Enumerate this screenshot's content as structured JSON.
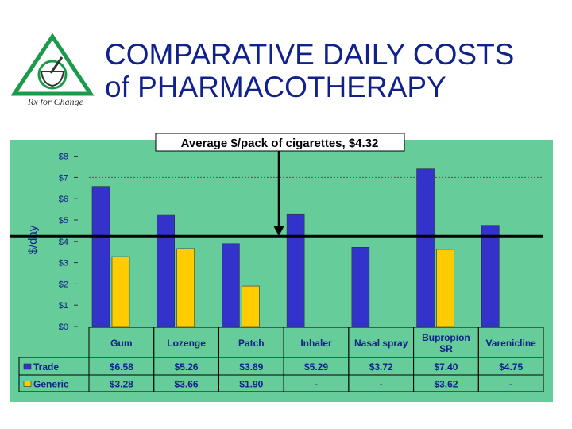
{
  "title": {
    "line1": "COMPARATIVE DAILY COSTS",
    "line2": "of PHARMACOTHERAPY"
  },
  "logo": {
    "text": "Rx for Change"
  },
  "annotation": {
    "text": "Average $/pack of cigarettes, $4.32",
    "value": 4.32
  },
  "colors": {
    "panel": "#66cc99",
    "trade": "#3333cc",
    "generic": "#ffcc00",
    "title": "#10218b",
    "logo": "#1a9a4a"
  },
  "chart_data": {
    "type": "bar",
    "ylabel": "$/day",
    "ylim": [
      0,
      8
    ],
    "yticks": [
      "$0",
      "$1",
      "$2",
      "$3",
      "$4",
      "$5",
      "$6",
      "$7",
      "$8"
    ],
    "categories": [
      "Gum",
      "Lozenge",
      "Patch",
      "Inhaler",
      "Nasal spray",
      "Bupropion SR",
      "Varenicline"
    ],
    "series": [
      {
        "name": "Trade",
        "values": [
          6.58,
          5.26,
          3.89,
          5.29,
          3.72,
          7.4,
          4.75
        ],
        "labels": [
          "$6.58",
          "$5.26",
          "$3.89",
          "$5.29",
          "$3.72",
          "$7.40",
          "$4.75"
        ]
      },
      {
        "name": "Generic",
        "values": [
          3.28,
          3.66,
          1.9,
          null,
          null,
          3.62,
          null
        ],
        "labels": [
          "$3.28",
          "$3.66",
          "$1.90",
          "-",
          "-",
          "$3.62",
          "-"
        ]
      }
    ],
    "reference_line": {
      "value": 4.32
    },
    "gridlines": "dashed at $7",
    "legend": "data table below chart"
  }
}
